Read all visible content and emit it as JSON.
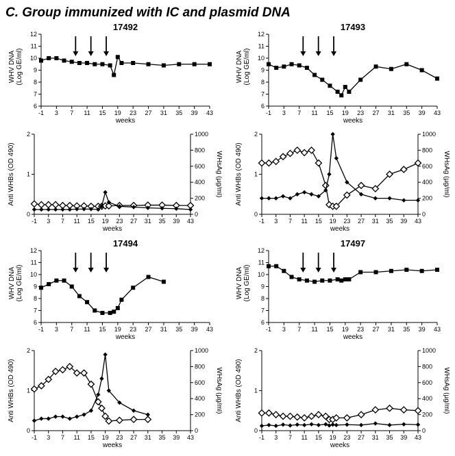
{
  "panel_letter": "C.",
  "panel_title": "Group immunized with IC and plasmid DNA",
  "font": {
    "title_size_pt": 16,
    "subject_size_pt": 13,
    "axis_label_size_pt": 10,
    "tick_size_pt": 9
  },
  "colors": {
    "background": "#ffffff",
    "line": "#000000",
    "marker_fill_solid": "#000000",
    "marker_fill_open": "#ffffff",
    "axis": "#000000",
    "text": "#000000"
  },
  "x_axis": {
    "label": "weeks",
    "lim": [
      -1,
      43
    ],
    "ticks": [
      -1,
      3,
      7,
      11,
      15,
      19,
      23,
      27,
      31,
      35,
      39,
      43
    ]
  },
  "y_whv": {
    "label_line1": "WHV DNA",
    "label_line2": "(Log GE/ml)",
    "lim": [
      6,
      12
    ],
    "ticks": [
      6,
      7,
      8,
      9,
      10,
      11,
      12
    ]
  },
  "y_anti": {
    "label": "Anti WHBs (OD 490)",
    "lim": [
      0,
      2
    ],
    "ticks": [
      0,
      1,
      2
    ]
  },
  "y_whsag": {
    "label": "WHsAg (µg/ml)",
    "lim": [
      0,
      1000
    ],
    "ticks": [
      0,
      200,
      400,
      600,
      800,
      1000
    ]
  },
  "arrows_x": [
    8,
    12,
    16
  ],
  "subjects": [
    {
      "id": "17492",
      "whv": {
        "x": [
          -1,
          1,
          3,
          5,
          7,
          9,
          11,
          13,
          15,
          17,
          18,
          19,
          20,
          23,
          27,
          31,
          35,
          39,
          43
        ],
        "y": [
          9.8,
          10.0,
          10.0,
          9.8,
          9.7,
          9.6,
          9.6,
          9.5,
          9.5,
          9.4,
          8.6,
          10.1,
          9.6,
          9.6,
          9.5,
          9.4,
          9.5,
          9.5,
          9.5
        ]
      },
      "anti": {
        "x": [
          -1,
          1,
          3,
          5,
          7,
          9,
          11,
          13,
          15,
          17,
          18,
          19,
          20,
          23,
          27,
          31,
          35,
          39,
          43
        ],
        "y": [
          0.12,
          0.12,
          0.12,
          0.12,
          0.12,
          0.12,
          0.13,
          0.13,
          0.13,
          0.12,
          0.2,
          0.55,
          0.3,
          0.2,
          0.18,
          0.16,
          0.15,
          0.14,
          0.12
        ]
      },
      "whsag": {
        "x": [
          -1,
          1,
          3,
          5,
          7,
          9,
          11,
          13,
          15,
          17,
          18,
          19,
          20,
          23,
          27,
          31,
          35,
          39,
          43
        ],
        "y": [
          130,
          120,
          120,
          120,
          110,
          110,
          105,
          105,
          100,
          100,
          100,
          105,
          105,
          110,
          110,
          115,
          115,
          110,
          110
        ]
      }
    },
    {
      "id": "17493",
      "whv": {
        "x": [
          -1,
          1,
          3,
          5,
          7,
          9,
          11,
          13,
          15,
          17,
          18,
          19,
          20,
          23,
          27,
          31,
          35,
          39,
          43
        ],
        "y": [
          9.5,
          9.2,
          9.3,
          9.5,
          9.4,
          9.2,
          8.6,
          8.2,
          7.7,
          7.2,
          6.9,
          7.6,
          7.2,
          8.2,
          9.3,
          9.1,
          9.5,
          9.0,
          8.3
        ]
      },
      "anti": {
        "x": [
          -1,
          1,
          3,
          5,
          7,
          9,
          11,
          13,
          15,
          17,
          18,
          19,
          20,
          23,
          27,
          31,
          35,
          39,
          43
        ],
        "y": [
          0.4,
          0.4,
          0.4,
          0.45,
          0.4,
          0.5,
          0.55,
          0.5,
          0.45,
          0.6,
          1.0,
          2.0,
          1.4,
          0.8,
          0.5,
          0.4,
          0.4,
          0.35,
          0.35
        ]
      },
      "whsag": {
        "x": [
          -1,
          1,
          3,
          5,
          7,
          9,
          11,
          13,
          15,
          17,
          18,
          19,
          20,
          23,
          27,
          31,
          35,
          39,
          43
        ],
        "y": [
          640,
          640,
          660,
          720,
          760,
          800,
          770,
          800,
          640,
          360,
          120,
          100,
          100,
          240,
          360,
          320,
          500,
          560,
          640
        ]
      }
    },
    {
      "id": "17494",
      "whv": {
        "x": [
          -1,
          1,
          3,
          5,
          7,
          9,
          11,
          13,
          15,
          17,
          18,
          19,
          20,
          23,
          27,
          31
        ],
        "y": [
          8.9,
          9.2,
          9.5,
          9.5,
          9.0,
          8.2,
          7.7,
          7.0,
          6.8,
          6.8,
          6.9,
          7.2,
          7.9,
          8.9,
          9.8,
          9.4
        ]
      },
      "anti": {
        "x": [
          -1,
          1,
          3,
          5,
          7,
          9,
          11,
          13,
          15,
          17,
          18,
          19,
          20,
          23,
          27,
          31
        ],
        "y": [
          0.25,
          0.3,
          0.3,
          0.35,
          0.35,
          0.3,
          0.35,
          0.4,
          0.5,
          0.9,
          1.3,
          1.9,
          1.0,
          0.7,
          0.5,
          0.4
        ]
      },
      "whsag": {
        "x": [
          -1,
          1,
          3,
          5,
          7,
          9,
          11,
          13,
          15,
          17,
          18,
          19,
          20,
          23,
          27,
          31
        ],
        "y": [
          520,
          560,
          640,
          740,
          760,
          800,
          720,
          720,
          580,
          360,
          280,
          180,
          120,
          130,
          140,
          140
        ]
      }
    },
    {
      "id": "17497",
      "whv": {
        "x": [
          -1,
          1,
          3,
          5,
          7,
          9,
          11,
          13,
          15,
          17,
          18,
          19,
          20,
          23,
          27,
          31,
          35,
          39,
          43
        ],
        "y": [
          10.7,
          10.7,
          10.3,
          9.8,
          9.6,
          9.5,
          9.4,
          9.5,
          9.5,
          9.6,
          9.5,
          9.6,
          9.6,
          10.2,
          10.2,
          10.3,
          10.4,
          10.3,
          10.4
        ]
      },
      "anti": {
        "x": [
          -1,
          1,
          3,
          5,
          7,
          9,
          11,
          13,
          15,
          17,
          18,
          19,
          20,
          23,
          27,
          31,
          35,
          39,
          43
        ],
        "y": [
          0.12,
          0.14,
          0.12,
          0.15,
          0.13,
          0.15,
          0.14,
          0.16,
          0.14,
          0.16,
          0.13,
          0.15,
          0.14,
          0.15,
          0.14,
          0.18,
          0.14,
          0.16,
          0.15
        ]
      },
      "whsag": {
        "x": [
          -1,
          1,
          3,
          5,
          7,
          9,
          11,
          13,
          15,
          17,
          18,
          19,
          20,
          23,
          27,
          31,
          35,
          39,
          43
        ],
        "y": [
          220,
          220,
          200,
          180,
          180,
          170,
          160,
          180,
          200,
          180,
          140,
          140,
          160,
          160,
          200,
          260,
          280,
          260,
          250
        ]
      }
    }
  ]
}
